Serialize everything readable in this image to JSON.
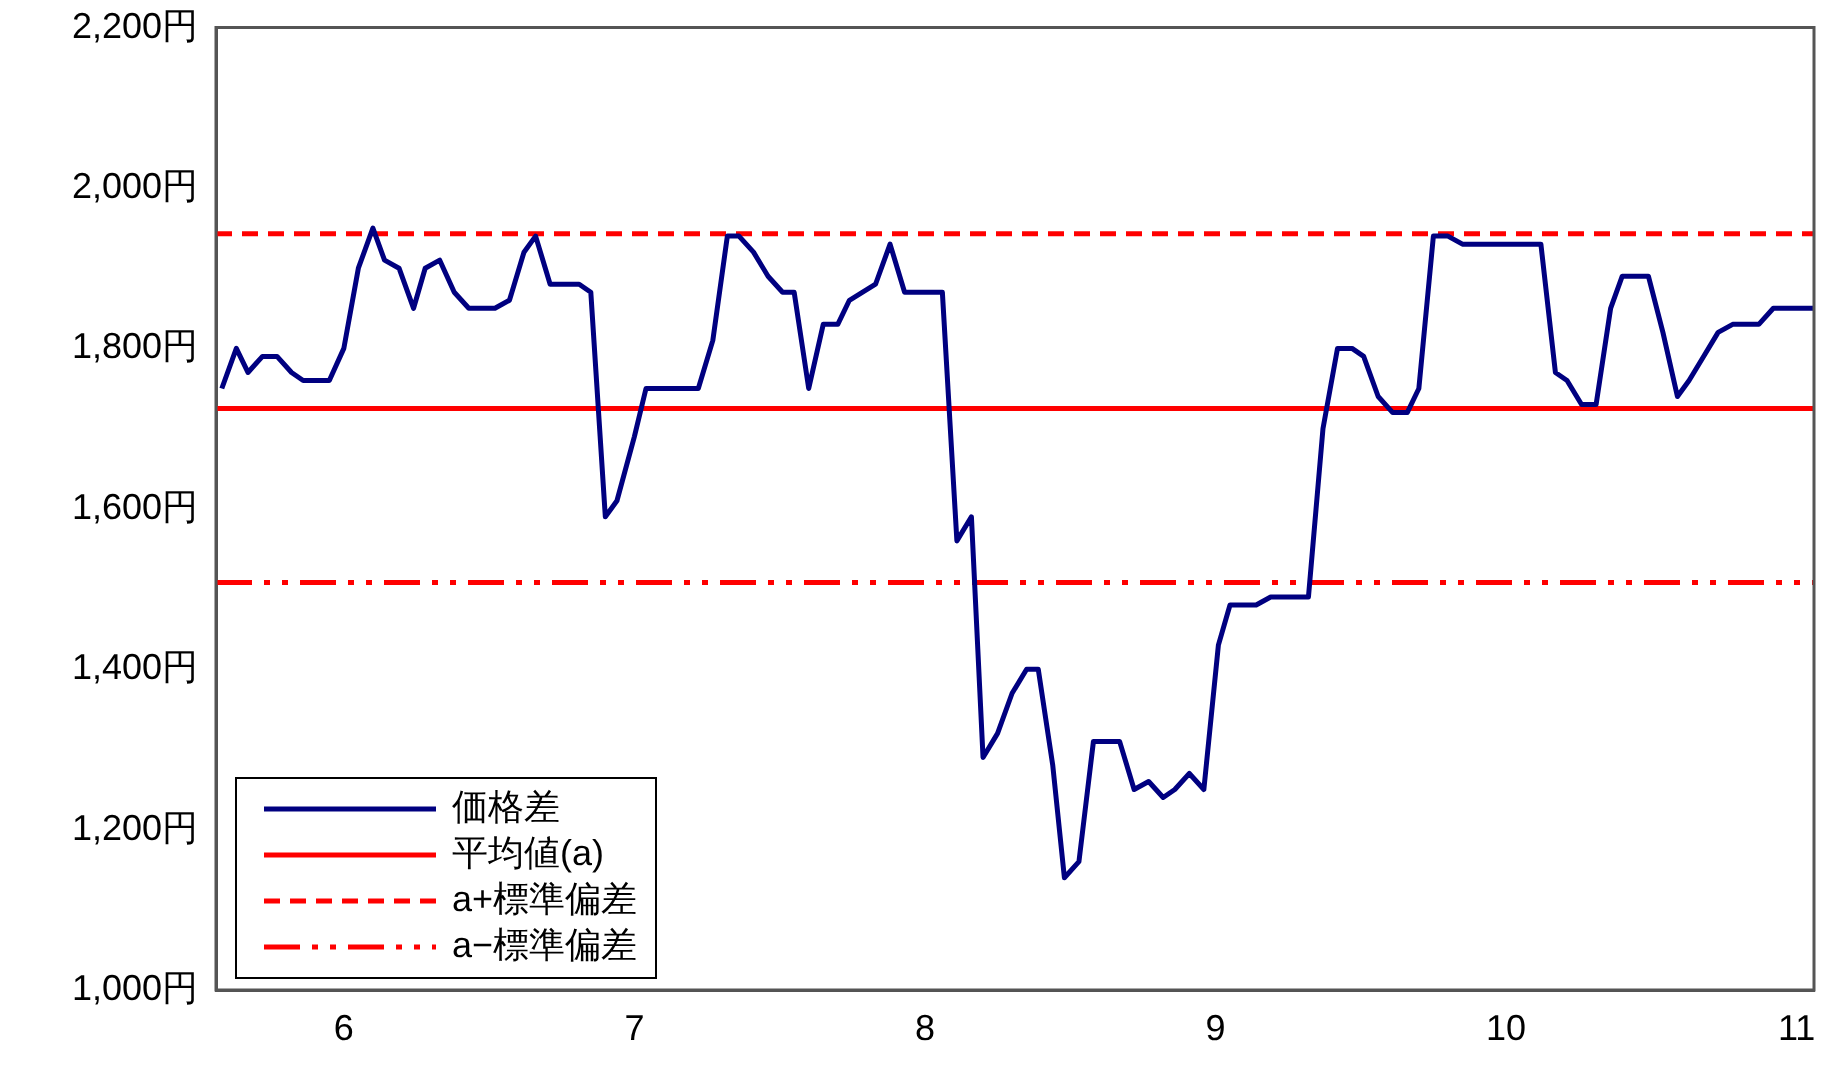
{
  "chart_data": {
    "type": "line",
    "xlim": [
      5.56,
      11.06
    ],
    "xticks": [
      6,
      7,
      8,
      9,
      10,
      11
    ],
    "ylim": [
      1000,
      2200
    ],
    "yticks": [
      {
        "value": 1000,
        "label": "1,000円"
      },
      {
        "value": 1200,
        "label": "1,200円"
      },
      {
        "value": 1400,
        "label": "1,400円"
      },
      {
        "value": 1600,
        "label": "1,600円"
      },
      {
        "value": 1800,
        "label": "1,800円"
      },
      {
        "value": 2000,
        "label": "2,000円"
      },
      {
        "value": 2200,
        "label": "2,200円"
      }
    ],
    "grid": false,
    "legend": "bottom left",
    "marker": "none",
    "line_style": "solid",
    "x": [
      5.58,
      5.63,
      5.67,
      5.72,
      5.77,
      5.82,
      5.86,
      5.95,
      6.0,
      6.05,
      6.1,
      6.14,
      6.19,
      6.24,
      6.28,
      6.33,
      6.38,
      6.43,
      6.52,
      6.57,
      6.62,
      6.66,
      6.71,
      6.81,
      6.85,
      6.9,
      6.94,
      7.0,
      7.04,
      7.22,
      7.27,
      7.32,
      7.36,
      7.41,
      7.46,
      7.51,
      7.55,
      7.6,
      7.65,
      7.7,
      7.74,
      7.83,
      7.88,
      7.93,
      8.06,
      8.11,
      8.16,
      8.2,
      8.25,
      8.3,
      8.35,
      8.39,
      8.44,
      8.48,
      8.53,
      8.58,
      8.67,
      8.72,
      8.77,
      8.82,
      8.86,
      8.91,
      8.96,
      9.01,
      9.05,
      9.14,
      9.19,
      9.32,
      9.37,
      9.42,
      9.47,
      9.51,
      9.56,
      9.61,
      9.66,
      9.7,
      9.75,
      9.8,
      9.85,
      10.12,
      10.17,
      10.21,
      10.26,
      10.31,
      10.36,
      10.4,
      10.49,
      10.54,
      10.59,
      10.63,
      10.68,
      10.73,
      10.78,
      10.87,
      10.92,
      11.06
    ],
    "series": [
      {
        "name": "価格差",
        "color": "#000080",
        "values": [
          1750,
          1800,
          1770,
          1790,
          1790,
          1770,
          1760,
          1760,
          1800,
          1900,
          1950,
          1910,
          1900,
          1850,
          1900,
          1910,
          1870,
          1850,
          1850,
          1860,
          1920,
          1940,
          1880,
          1880,
          1870,
          1590,
          1610,
          1690,
          1750,
          1750,
          1810,
          1940,
          1940,
          1920,
          1890,
          1870,
          1870,
          1750,
          1830,
          1830,
          1860,
          1880,
          1930,
          1870,
          1870,
          1560,
          1590,
          1290,
          1320,
          1370,
          1400,
          1400,
          1280,
          1140,
          1160,
          1310,
          1310,
          1250,
          1260,
          1240,
          1250,
          1270,
          1250,
          1430,
          1480,
          1480,
          1490,
          1490,
          1700,
          1800,
          1800,
          1790,
          1740,
          1720,
          1720,
          1750,
          1940,
          1940,
          1930,
          1930,
          1770,
          1760,
          1730,
          1730,
          1850,
          1890,
          1890,
          1820,
          1740,
          1760,
          1790,
          1820,
          1830,
          1830,
          1850,
          1850
        ]
      }
    ],
    "ref_lines": [
      {
        "axis": "y",
        "value": 1725,
        "label": "平均値(a)",
        "color": "#ff0000",
        "line_style": "solid"
      },
      {
        "axis": "y",
        "value": 1943,
        "label": "a+標準偏差",
        "color": "#ff0000",
        "line_style": "dashed"
      },
      {
        "axis": "y",
        "value": 1508,
        "label": "a−標準偏差",
        "color": "#ff0000",
        "line_style": "dashdot"
      }
    ]
  }
}
